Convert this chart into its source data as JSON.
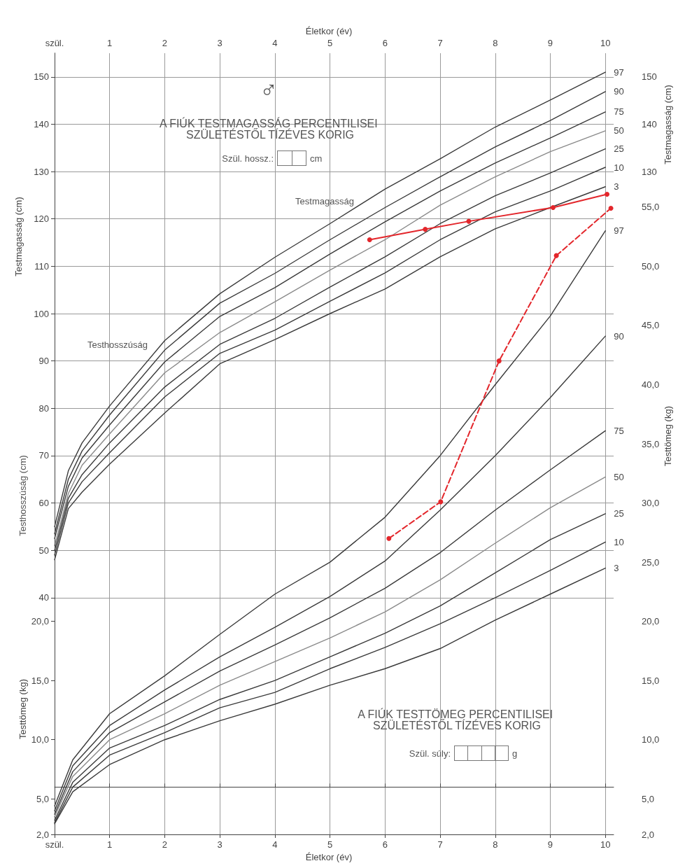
{
  "chart_data": [
    {
      "type": "line",
      "title": "A FIÚK TESTMAGASSÁG PERCENTILISEI SZÜLETÉSTŐL TÍZÉVES KORIG",
      "xlabel": "Életkor (év)",
      "ylabel": "Testmagasság (cm)",
      "y2label": "Testmagasság (cm)",
      "annotations": [
        "♂",
        "Szül. hossz.:",
        "cm",
        "Testhosszúság (cm)",
        "Testmagasság",
        "Testhosszúság"
      ],
      "xlim": [
        0,
        10.15
      ],
      "xticks": [
        {
          "value": 0,
          "label": "szül."
        },
        1,
        2,
        3,
        4,
        5,
        6,
        7,
        8,
        9,
        10
      ],
      "ylim": [
        -10,
        155
      ],
      "yticks": [
        40,
        50,
        60,
        70,
        80,
        90,
        100,
        110,
        120,
        130,
        140,
        150
      ],
      "y2lim": [
        -10,
        155
      ],
      "y2ticks": [
        130,
        140,
        150
      ],
      "grid": true,
      "marker": "none",
      "line_style": "solid",
      "series": [
        {
          "name": "97",
          "color": "#3a3a3a",
          "x": [
            0,
            0.25,
            0.5,
            1,
            2,
            3,
            4,
            5,
            6,
            7,
            8,
            9,
            10
          ],
          "values": [
            55,
            66.8,
            72.7,
            80.5,
            94.3,
            104.2,
            111.9,
            119,
            126.3,
            132.7,
            139.4,
            145.1,
            151
          ]
        },
        {
          "name": "90",
          "color": "#3a3a3a",
          "x": [
            0,
            0.25,
            0.5,
            1,
            2,
            3,
            4,
            5,
            6,
            7,
            8,
            9,
            10
          ],
          "values": [
            53.5,
            65,
            71,
            78.6,
            92.3,
            102.2,
            108.5,
            115.6,
            122.4,
            128.9,
            135.2,
            140.8,
            146.9
          ]
        },
        {
          "name": "75",
          "color": "#3a3a3a",
          "x": [
            0,
            0.25,
            0.5,
            1,
            2,
            3,
            4,
            5,
            6,
            7,
            8,
            9,
            10
          ],
          "values": [
            52.5,
            63.5,
            69.5,
            76.5,
            89.8,
            99.4,
            105.5,
            112.6,
            119.4,
            125.9,
            131.8,
            137.1,
            142.6
          ]
        },
        {
          "name": "50",
          "color": "#8a8a8a",
          "x": [
            0,
            0.25,
            0.5,
            1,
            2,
            3,
            4,
            5,
            6,
            7,
            8,
            9,
            10
          ],
          "values": [
            51,
            62,
            68,
            74.6,
            87.5,
            96,
            102.5,
            109.2,
            115.6,
            122.9,
            128.9,
            134.2,
            138.6
          ]
        },
        {
          "name": "25",
          "color": "#3a3a3a",
          "x": [
            0,
            0.25,
            0.5,
            1,
            2,
            3,
            4,
            5,
            6,
            7,
            8,
            9,
            10
          ],
          "values": [
            50,
            61,
            66,
            72.7,
            84.5,
            93.5,
            99,
            105.6,
            112,
            119,
            124.9,
            129.7,
            134.8
          ]
        },
        {
          "name": "10",
          "color": "#3a3a3a",
          "x": [
            0,
            0.25,
            0.5,
            1,
            2,
            3,
            4,
            5,
            6,
            7,
            8,
            9,
            10
          ],
          "values": [
            49,
            60,
            64.5,
            70.6,
            82.4,
            91.6,
            96.5,
            102.6,
            108.6,
            115.6,
            121.5,
            125.9,
            130.9
          ]
        },
        {
          "name": "3",
          "color": "#3a3a3a",
          "x": [
            0,
            0.25,
            0.5,
            1,
            2,
            3,
            4,
            5,
            6,
            7,
            8,
            9,
            10
          ],
          "values": [
            48,
            58.8,
            62.3,
            68.2,
            79,
            89.4,
            94.5,
            100,
            105.2,
            112,
            117.9,
            122.4,
            126.8
          ]
        },
        {
          "color": "#e3262b",
          "marker": "circle",
          "line_style": "solid",
          "x": [
            5.72,
            6.73,
            7.52,
            9.05,
            10.03
          ],
          "values": [
            115.6,
            117.8,
            119.5,
            122.4,
            125.2
          ]
        }
      ]
    },
    {
      "type": "line",
      "title": "A FIÚK TESTTÖMEG PERCENTILISEI SZÜLETÉSTŐL TÍZÉVES KORIG",
      "xlabel": "Életkor (év)",
      "ylabel": "Testtömeg (kg)",
      "y2label": "Testtömeg (kg)",
      "annotations": [
        "Szül. súly:",
        "g"
      ],
      "xlim": [
        0,
        10.15
      ],
      "xticks": [
        {
          "value": 0,
          "label": "szül."
        },
        1,
        2,
        3,
        4,
        5,
        6,
        7,
        8,
        9,
        10
      ],
      "ylim": [
        2,
        68
      ],
      "yticks": [
        {
          "value": 2,
          "label": "2,0"
        },
        {
          "value": 5,
          "label": "5,0"
        },
        {
          "value": 10,
          "label": "10,0"
        },
        {
          "value": 15,
          "label": "15,0"
        },
        {
          "value": 20,
          "label": "20,0"
        }
      ],
      "y2lim": [
        2,
        68
      ],
      "y2ticks": [
        {
          "value": 2,
          "label": "2,0"
        },
        {
          "value": 5,
          "label": "5,0"
        },
        {
          "value": 10,
          "label": "10,0"
        },
        {
          "value": 15,
          "label": "15,0"
        },
        {
          "value": 20,
          "label": "20,0"
        },
        {
          "value": 25,
          "label": "25,0"
        },
        {
          "value": 30,
          "label": "30,0"
        },
        {
          "value": 35,
          "label": "35,0"
        },
        {
          "value": 40,
          "label": "40,0"
        },
        {
          "value": 45,
          "label": "45,0"
        },
        {
          "value": 50,
          "label": "50,0"
        },
        {
          "value": 55,
          "label": "55,0"
        }
      ],
      "marker": "none",
      "line_style": "solid",
      "series": [
        {
          "name": "97",
          "color": "#3a3a3a",
          "x": [
            0,
            0.33,
            1,
            2,
            3,
            4,
            5,
            6,
            7,
            8,
            9,
            10
          ],
          "values": [
            4.4,
            8.3,
            12.2,
            15.4,
            18.9,
            22.3,
            25,
            28.8,
            34,
            40,
            45.8,
            53
          ]
        },
        {
          "name": "90",
          "color": "#3a3a3a",
          "x": [
            0,
            0.33,
            1,
            2,
            3,
            4,
            5,
            6,
            7,
            8,
            9,
            10
          ],
          "values": [
            4,
            7.8,
            11.2,
            14.2,
            17,
            19.5,
            22.1,
            25.1,
            29.4,
            34,
            38.9,
            44.1
          ]
        },
        {
          "name": "75",
          "color": "#3a3a3a",
          "x": [
            0,
            0.33,
            1,
            2,
            3,
            4,
            5,
            6,
            7,
            8,
            9,
            10
          ],
          "values": [
            3.7,
            7.3,
            10.6,
            13.2,
            15.8,
            18,
            20.3,
            22.8,
            25.8,
            29.4,
            32.8,
            36.1
          ]
        },
        {
          "name": "50",
          "color": "#8a8a8a",
          "x": [
            0,
            0.33,
            1,
            2,
            3,
            4,
            5,
            6,
            7,
            8,
            9,
            10
          ],
          "values": [
            3.5,
            6.9,
            10,
            12.2,
            14.6,
            16.6,
            18.6,
            20.8,
            23.5,
            26.6,
            29.6,
            32.2
          ]
        },
        {
          "name": "25",
          "color": "#3a3a3a",
          "x": [
            0,
            0.33,
            1,
            2,
            3,
            4,
            5,
            6,
            7,
            8,
            9,
            10
          ],
          "values": [
            3.2,
            6.4,
            9.3,
            11.2,
            13.4,
            15,
            17,
            19,
            21.3,
            24.1,
            26.9,
            29.1
          ]
        },
        {
          "name": "10",
          "color": "#3a3a3a",
          "x": [
            0,
            0.33,
            1,
            2,
            3,
            4,
            5,
            6,
            7,
            8,
            9,
            10
          ],
          "values": [
            3,
            6,
            8.7,
            10.6,
            12.7,
            14,
            16,
            17.8,
            19.8,
            22,
            24.3,
            26.7
          ]
        },
        {
          "name": "3",
          "color": "#3a3a3a",
          "x": [
            0,
            0.33,
            1,
            2,
            3,
            4,
            5,
            6,
            7,
            8,
            9,
            10
          ],
          "values": [
            2.9,
            5.6,
            7.9,
            10,
            11.6,
            13,
            14.6,
            16,
            17.7,
            20.1,
            22.3,
            24.5
          ]
        },
        {
          "color": "#e3262b",
          "marker": "circle",
          "line_style": "dashed",
          "x": [
            6.07,
            7.01,
            8.07,
            9.11,
            10.1
          ],
          "values": [
            27,
            30.1,
            42,
            50.9,
            54.9
          ]
        }
      ]
    }
  ]
}
